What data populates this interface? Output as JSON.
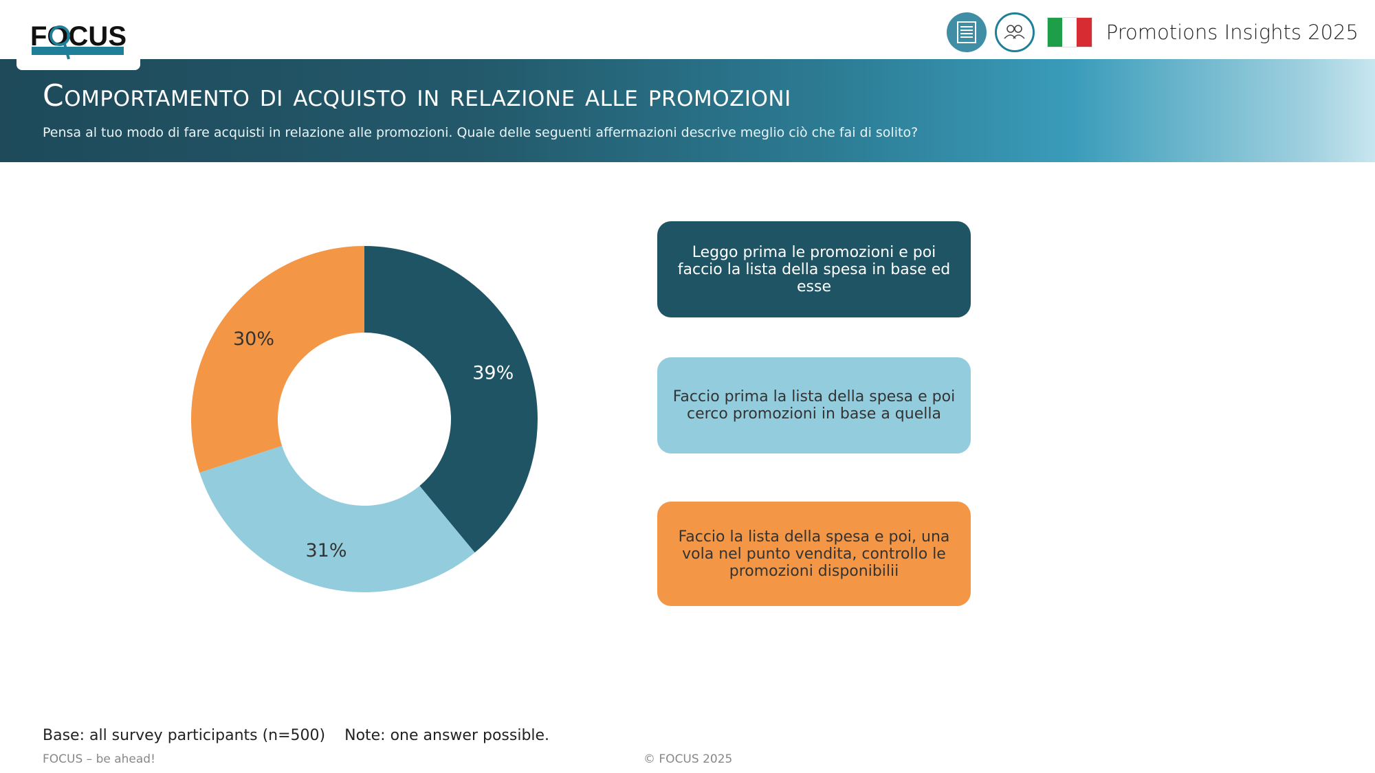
{
  "brand": {
    "logo_text": "FOCUS"
  },
  "header": {
    "app_title": "Promotions Insights 2025",
    "flag_colors": [
      "#1f9e49",
      "#ffffff",
      "#d62c32"
    ]
  },
  "banner": {
    "title": "Comportamento di acquisto in relazione alle promozioni",
    "subtitle": "Pensa al tuo modo di fare acquisti in relazione alle promozioni. Quale delle seguenti affermazioni descrive meglio ciò che fai di solito?"
  },
  "colors": {
    "accent": "#1f5464",
    "light": "#93cddd",
    "orange": "#f39645"
  },
  "chart_data": {
    "type": "pie",
    "donut": true,
    "categories": [
      "Leggo prima le promozioni e poi faccio la lista della spesa in base ed esse",
      "Faccio prima la lista della spesa e poi cerco promozioni in base a quella",
      "Faccio la lista della spesa e poi, una vola nel punto vendita, controllo le promozioni disponibilii"
    ],
    "values": [
      39,
      31,
      30
    ],
    "labels": [
      "39%",
      "31%",
      "30%"
    ],
    "colors": [
      "#1f5464",
      "#93cddd",
      "#f39645"
    ],
    "text_colors": [
      "#ffffff",
      "#333333",
      "#333333"
    ],
    "legend": "right"
  },
  "footer": {
    "note": "Base: all survey participants (n=500)    Note: one answer possible.",
    "brand": "FOCUS – be ahead!",
    "copyright": "© FOCUS 2025"
  }
}
